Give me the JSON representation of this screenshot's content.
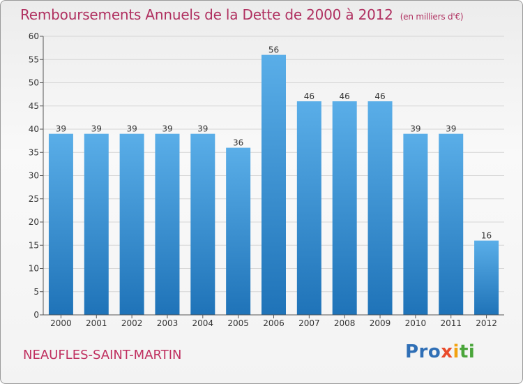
{
  "title": "Remboursements Annuels de la Dette de 2000 à 2012",
  "unit": "(en milliers d'€)",
  "commune": "NEAUFLES-SAINT-MARTIN",
  "logo": {
    "p1": "Pro",
    "p2": "x",
    "p3": "i",
    "p4": "ti"
  },
  "colors": {
    "bar_top": "#5aaee8",
    "bar_bottom": "#1f73b8",
    "title": "#b03060"
  },
  "chart_data": {
    "type": "bar",
    "categories": [
      "2000",
      "2001",
      "2002",
      "2003",
      "2004",
      "2005",
      "2006",
      "2007",
      "2008",
      "2009",
      "2010",
      "2011",
      "2012"
    ],
    "values": [
      39,
      39,
      39,
      39,
      39,
      36,
      56,
      46,
      46,
      46,
      39,
      39,
      16
    ],
    "ylim": [
      0,
      60
    ],
    "yticks": [
      0,
      5,
      10,
      15,
      20,
      25,
      30,
      35,
      40,
      45,
      50,
      55,
      60
    ],
    "grid": true
  }
}
